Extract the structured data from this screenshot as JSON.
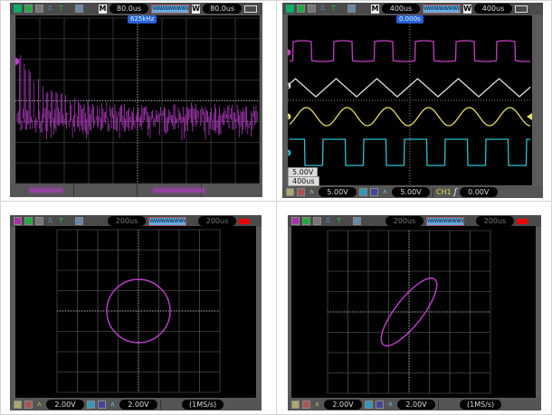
{
  "panels": [
    {
      "id": "fft",
      "top_bar": {
        "mode_label": "M",
        "main_timebase": "80.0us",
        "window_label": "W",
        "window_timebase": "80.0us"
      },
      "cursor_label": "625kHz",
      "trace_color": "#c040d0",
      "grid": {
        "cols": 10,
        "rows": 8
      }
    },
    {
      "id": "four-channel",
      "top_bar": {
        "mode_label": "M",
        "main_timebase": "400us",
        "window_label": "W",
        "window_timebase": "400us"
      },
      "cursor_label": "0.000s",
      "overlay": {
        "volts": "5.00V",
        "time": "400us"
      },
      "bottom_bar": {
        "ch1_scale": "5.00V",
        "ch2_scale": "5.00V",
        "trigger_source": "CH1",
        "trigger_level": "0.00V"
      },
      "channels": [
        {
          "marker": "",
          "color": "#c040c0",
          "shape": "square-rounded"
        },
        {
          "marker": "4",
          "color": "#e0e0e0",
          "shape": "triangle"
        },
        {
          "marker": "1",
          "color": "#e8e060",
          "shape": "sine"
        },
        {
          "marker": "2",
          "color": "#30c0d0",
          "shape": "square"
        }
      ]
    },
    {
      "id": "xy-circle",
      "top_bar": {
        "main_timebase": "200us",
        "window_timebase": "200us"
      },
      "bottom_bar": {
        "ch1_scale": "2.00V",
        "ch2_scale": "2.00V",
        "sample_rate": "(1MS/s)"
      },
      "trace_color": "#c040d0",
      "figure": "circle"
    },
    {
      "id": "xy-ellipse",
      "top_bar": {
        "main_timebase": "200us",
        "window_timebase": "200us"
      },
      "bottom_bar": {
        "ch1_scale": "2.00V",
        "ch2_scale": "2.00V",
        "sample_rate": "(1MS/s)"
      },
      "trace_color": "#c040d0",
      "figure": "tilted-ellipse"
    }
  ]
}
